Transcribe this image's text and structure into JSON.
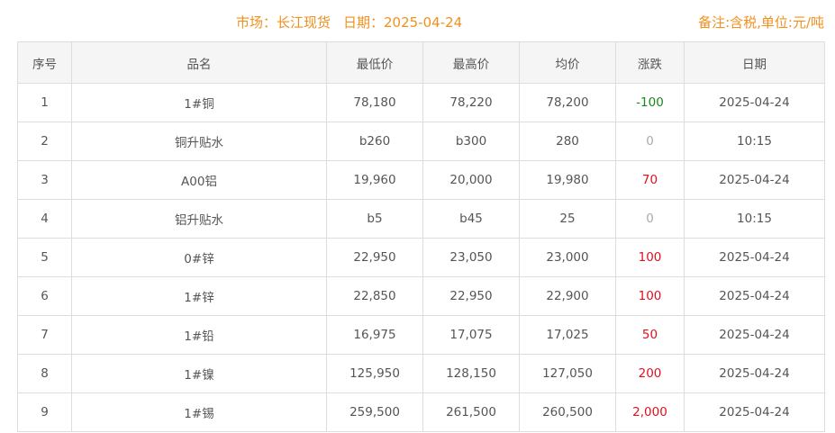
{
  "header": {
    "market_label": "市场：长江现货",
    "date_label": "日期：2025-04-24",
    "note": "备注:含税,单位:元/吨"
  },
  "colors": {
    "title": "#f0901e",
    "up": "#e0101e",
    "down": "#1a8a1a",
    "flat": "#aaaaaa"
  },
  "table": {
    "columns": [
      "序号",
      "品名",
      "最低价",
      "最高价",
      "均价",
      "涨跌",
      "日期"
    ],
    "rows": [
      {
        "no": "1",
        "name": "1#铜",
        "low": "78,180",
        "high": "78,220",
        "avg": "78,200",
        "change": "-100",
        "dir": "down",
        "date": "2025-04-24"
      },
      {
        "no": "2",
        "name": "铜升贴水",
        "low": "b260",
        "high": "b300",
        "avg": "280",
        "change": "0",
        "dir": "flat",
        "date": "10:15"
      },
      {
        "no": "3",
        "name": "A00铝",
        "low": "19,960",
        "high": "20,000",
        "avg": "19,980",
        "change": "70",
        "dir": "up",
        "date": "2025-04-24"
      },
      {
        "no": "4",
        "name": "铝升贴水",
        "low": "b5",
        "high": "b45",
        "avg": "25",
        "change": "0",
        "dir": "flat",
        "date": "10:15"
      },
      {
        "no": "5",
        "name": "0#锌",
        "low": "22,950",
        "high": "23,050",
        "avg": "23,000",
        "change": "100",
        "dir": "up",
        "date": "2025-04-24"
      },
      {
        "no": "6",
        "name": "1#锌",
        "low": "22,850",
        "high": "22,950",
        "avg": "22,900",
        "change": "100",
        "dir": "up",
        "date": "2025-04-24"
      },
      {
        "no": "7",
        "name": "1#铅",
        "low": "16,975",
        "high": "17,075",
        "avg": "17,025",
        "change": "50",
        "dir": "up",
        "date": "2025-04-24"
      },
      {
        "no": "8",
        "name": "1#镍",
        "low": "125,950",
        "high": "128,150",
        "avg": "127,050",
        "change": "200",
        "dir": "up",
        "date": "2025-04-24"
      },
      {
        "no": "9",
        "name": "1#锡",
        "low": "259,500",
        "high": "261,500",
        "avg": "260,500",
        "change": "2,000",
        "dir": "up",
        "date": "2025-04-24"
      }
    ]
  }
}
